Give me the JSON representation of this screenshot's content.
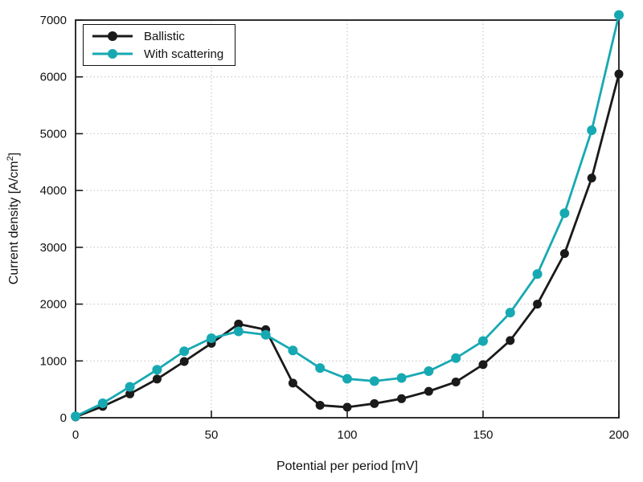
{
  "chart_data": {
    "type": "line",
    "title": "",
    "xlabel": "Potential per period [mV]",
    "ylabel_prefix": "Current density [A/cm",
    "ylabel_sup": "2",
    "ylabel_suffix": "]",
    "x": [
      0,
      10,
      20,
      30,
      40,
      50,
      60,
      70,
      80,
      90,
      100,
      110,
      120,
      130,
      140,
      150,
      160,
      170,
      180,
      190,
      200
    ],
    "series": [
      {
        "name": "Ballistic",
        "color": "#1a1a1a",
        "marker_radius": 5.5,
        "values": [
          15,
          200,
          420,
          680,
          990,
          1310,
          1650,
          1550,
          610,
          220,
          185,
          250,
          335,
          465,
          630,
          935,
          1360,
          2000,
          2890,
          4220,
          6050
        ]
      },
      {
        "name": "With scattering",
        "color": "#17a9b2",
        "marker_radius": 6,
        "values": [
          25,
          255,
          545,
          845,
          1170,
          1400,
          1520,
          1460,
          1185,
          875,
          685,
          645,
          700,
          820,
          1050,
          1350,
          1850,
          2530,
          3600,
          5060,
          7090
        ]
      }
    ],
    "xticks": [
      0,
      50,
      100,
      150,
      200
    ],
    "yticks": [
      0,
      1000,
      2000,
      3000,
      4000,
      5000,
      6000,
      7000
    ],
    "xlim": [
      0,
      200
    ],
    "ylim": [
      0,
      7000
    ],
    "grid": true,
    "legend_position": "top-left",
    "grid_color": "#bdbdbd",
    "frame_color": "#1a1a1a",
    "tick_label_color": "#111111",
    "background": "#ffffff"
  }
}
